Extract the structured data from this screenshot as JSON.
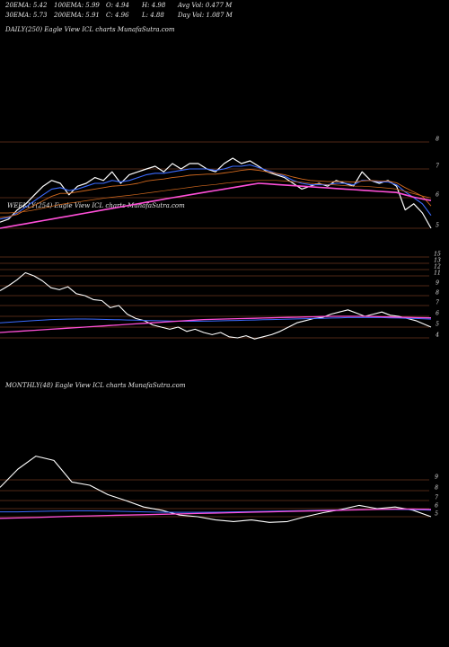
{
  "header": {
    "row1": [
      "20EMA: 5.42",
      "100EMA: 5.99",
      "O: 4.94",
      "H: 4.98",
      "Avg Vol: 0.477 M"
    ],
    "row2": [
      "30EMA: 5.73",
      "200EMA: 5.91",
      "C: 4.96",
      "L: 4.88",
      "Day Vol: 1.087 M"
    ]
  },
  "panels": {
    "daily_label": "DAILY(250) Eagle  View  ICL  charts MunafaSutra.com",
    "weekly_label": "WEEKLY(254) Eagle  View  ICL  charts MunafaSutra.com",
    "monthly_label": "MONTHLY(48) Eagle  View  ICL  charts MunafaSutra.com"
  },
  "colors": {
    "background": "#000000",
    "price": "#ffffff",
    "level_line": "#a0522d",
    "ema_blue": "#3b6bff",
    "ema_orange": "#d2691e",
    "ema_pink": "#ff4fd8",
    "ema_purple": "#b05cff"
  },
  "chart_data": [
    {
      "type": "line",
      "title": "DAILY(250) Eagle View ICL charts MunafaSutra.com",
      "y_ticks": [
        8,
        7,
        6,
        5
      ],
      "ylim": [
        4.9,
        8.1
      ],
      "x": [
        0,
        5,
        10,
        15,
        20,
        25,
        30,
        35,
        40,
        45,
        50,
        55,
        60,
        65,
        70,
        75,
        80,
        85,
        90,
        95,
        100,
        105,
        110,
        115,
        120,
        125,
        130,
        135,
        140,
        145,
        150,
        155,
        160,
        165,
        170,
        175,
        180,
        185,
        190,
        195,
        200,
        205,
        210,
        215,
        220,
        225,
        230,
        235,
        240,
        245,
        250
      ],
      "series": [
        {
          "values": [
            5.2,
            5.3,
            5.6,
            5.8,
            6.1,
            6.4,
            6.6,
            6.5,
            6.1,
            6.4,
            6.5,
            6.7,
            6.6,
            6.9,
            6.5,
            6.8,
            6.9,
            7.0,
            7.1,
            6.9,
            7.2,
            7.0,
            7.2,
            7.2,
            7.0,
            6.9,
            7.2,
            7.4,
            7.2,
            7.3,
            7.1,
            6.9,
            6.8,
            6.7,
            6.5,
            6.3,
            6.4,
            6.5,
            6.4,
            6.6,
            6.5,
            6.4,
            6.9,
            6.6,
            6.5,
            6.6,
            6.4,
            5.6,
            5.8,
            5.5,
            5.0
          ]
        },
        {
          "values": [
            5.3,
            5.35,
            5.5,
            5.7,
            5.9,
            6.1,
            6.3,
            6.35,
            6.25,
            6.3,
            6.4,
            6.5,
            6.5,
            6.6,
            6.55,
            6.6,
            6.7,
            6.8,
            6.85,
            6.85,
            6.9,
            6.95,
            7.0,
            7.0,
            7.0,
            6.95,
            7.0,
            7.1,
            7.1,
            7.15,
            7.05,
            6.95,
            6.85,
            6.75,
            6.6,
            6.5,
            6.45,
            6.45,
            6.45,
            6.5,
            6.5,
            6.45,
            6.6,
            6.6,
            6.55,
            6.55,
            6.45,
            6.2,
            6.0,
            5.8,
            5.42
          ]
        },
        {
          "values": [
            5.35,
            5.38,
            5.45,
            5.6,
            5.75,
            5.9,
            6.05,
            6.15,
            6.15,
            6.2,
            6.25,
            6.3,
            6.35,
            6.4,
            6.42,
            6.45,
            6.5,
            6.58,
            6.62,
            6.65,
            6.7,
            6.73,
            6.78,
            6.8,
            6.82,
            6.82,
            6.86,
            6.9,
            6.95,
            6.98,
            6.95,
            6.9,
            6.85,
            6.8,
            6.72,
            6.65,
            6.6,
            6.58,
            6.56,
            6.56,
            6.56,
            6.54,
            6.58,
            6.6,
            6.58,
            6.58,
            6.52,
            6.35,
            6.2,
            6.05,
            5.73
          ]
        },
        {
          "values": [
            5.5,
            5.5,
            5.52,
            5.55,
            5.6,
            5.66,
            5.72,
            5.78,
            5.82,
            5.86,
            5.9,
            5.94,
            5.98,
            6.02,
            6.05,
            6.08,
            6.12,
            6.16,
            6.2,
            6.24,
            6.28,
            6.32,
            6.36,
            6.4,
            6.43,
            6.46,
            6.5,
            6.53,
            6.56,
            6.58,
            6.6,
            6.6,
            6.6,
            6.58,
            6.56,
            6.54,
            6.5,
            6.48,
            6.46,
            6.44,
            6.42,
            6.4,
            6.4,
            6.38,
            6.36,
            6.33,
            6.3,
            6.22,
            6.14,
            6.06,
            5.99
          ]
        },
        {
          "values": [
            5.0,
            5.05,
            5.1,
            5.15,
            5.2,
            5.25,
            5.3,
            5.35,
            5.4,
            5.45,
            5.5,
            5.55,
            5.6,
            5.65,
            5.7,
            5.75,
            5.8,
            5.85,
            5.9,
            5.95,
            6.0,
            6.05,
            6.1,
            6.15,
            6.2,
            6.25,
            6.3,
            6.35,
            6.4,
            6.45,
            6.5,
            6.48,
            6.46,
            6.44,
            6.42,
            6.4,
            6.38,
            6.36,
            6.34,
            6.32,
            6.3,
            6.28,
            6.26,
            6.24,
            6.22,
            6.2,
            6.18,
            6.1,
            6.02,
            5.96,
            5.91
          ]
        }
      ]
    },
    {
      "type": "line",
      "title": "WEEKLY(254) Eagle View ICL charts MunafaSutra.com",
      "y_ticks": [
        15,
        13,
        12,
        11,
        9,
        8,
        7,
        6,
        5,
        4
      ],
      "x": [
        0,
        5,
        10,
        15,
        20,
        25,
        30,
        35,
        40,
        45,
        50,
        55,
        60,
        65,
        70,
        75,
        80,
        85,
        90,
        95,
        100,
        105,
        110,
        115,
        120,
        125,
        130,
        135,
        140,
        145,
        150,
        155,
        160,
        165,
        170,
        175,
        180,
        185,
        190,
        195,
        200,
        205,
        210,
        215,
        220,
        225,
        230,
        235,
        240,
        245,
        254
      ],
      "series": [
        {
          "values": [
            8.5,
            9.0,
            10.2,
            11.5,
            11.0,
            10.0,
            8.8,
            8.6,
            8.9,
            8.2,
            8.0,
            7.6,
            7.5,
            6.8,
            7.0,
            6.2,
            5.8,
            5.6,
            5.2,
            5.0,
            4.8,
            5.0,
            4.6,
            4.8,
            4.5,
            4.3,
            4.5,
            4.1,
            4.0,
            4.2,
            3.9,
            4.1,
            4.3,
            4.6,
            5.0,
            5.4,
            5.6,
            5.8,
            5.9,
            6.2,
            6.4,
            6.6,
            6.3,
            6.0,
            6.2,
            6.4,
            6.1,
            6.0,
            5.8,
            5.6,
            5.0
          ]
        },
        {
          "values": [
            5.4,
            5.45,
            5.5,
            5.55,
            5.6,
            5.65,
            5.7,
            5.72,
            5.74,
            5.75,
            5.75,
            5.74,
            5.72,
            5.7,
            5.68,
            5.66,
            5.64,
            5.62,
            5.6,
            5.58,
            5.56,
            5.55,
            5.54,
            5.54,
            5.55,
            5.56,
            5.58,
            5.6,
            5.62,
            5.64,
            5.66,
            5.68,
            5.7,
            5.72,
            5.74,
            5.76,
            5.78,
            5.8,
            5.82,
            5.84,
            5.86,
            5.88,
            5.88,
            5.88,
            5.88,
            5.88,
            5.86,
            5.84,
            5.82,
            5.8,
            5.74
          ]
        },
        {
          "values": [
            4.5,
            4.55,
            4.6,
            4.65,
            4.7,
            4.75,
            4.8,
            4.85,
            4.9,
            4.95,
            5.0,
            5.05,
            5.1,
            5.15,
            5.2,
            5.25,
            5.3,
            5.35,
            5.4,
            5.45,
            5.5,
            5.55,
            5.6,
            5.65,
            5.7,
            5.72,
            5.74,
            5.76,
            5.78,
            5.8,
            5.82,
            5.84,
            5.86,
            5.88,
            5.9,
            5.92,
            5.94,
            5.96,
            5.98,
            6.0,
            6.0,
            6.0,
            6.0,
            6.0,
            5.98,
            5.96,
            5.94,
            5.92,
            5.9,
            5.88,
            5.86
          ]
        }
      ]
    },
    {
      "type": "line",
      "title": "MONTHLY(48) Eagle View ICL charts MunafaSutra.com",
      "y_ticks": [
        9,
        8,
        7,
        6,
        5
      ],
      "x": [
        0,
        2,
        4,
        6,
        8,
        10,
        12,
        14,
        16,
        18,
        20,
        22,
        24,
        26,
        28,
        30,
        32,
        34,
        36,
        38,
        40,
        42,
        44,
        46,
        48
      ],
      "series": [
        {
          "values": [
            8.3,
            10.0,
            11.2,
            10.8,
            8.8,
            8.5,
            7.6,
            7.0,
            6.2,
            5.8,
            5.2,
            5.0,
            4.6,
            4.4,
            4.6,
            4.3,
            4.4,
            5.0,
            5.5,
            5.9,
            6.4,
            6.0,
            6.2,
            5.8,
            5.0
          ]
        },
        {
          "values": [
            5.6,
            5.6,
            5.65,
            5.7,
            5.72,
            5.72,
            5.7,
            5.65,
            5.6,
            5.56,
            5.54,
            5.54,
            5.56,
            5.6,
            5.64,
            5.68,
            5.72,
            5.76,
            5.8,
            5.84,
            5.88,
            5.9,
            5.9,
            5.88,
            5.8
          ]
        },
        {
          "values": [
            4.8,
            4.85,
            4.9,
            4.98,
            5.05,
            5.1,
            5.15,
            5.2,
            5.25,
            5.3,
            5.35,
            5.4,
            5.45,
            5.5,
            5.55,
            5.6,
            5.65,
            5.7,
            5.75,
            5.8,
            5.85,
            5.9,
            5.95,
            5.95,
            5.9
          ]
        }
      ]
    }
  ]
}
